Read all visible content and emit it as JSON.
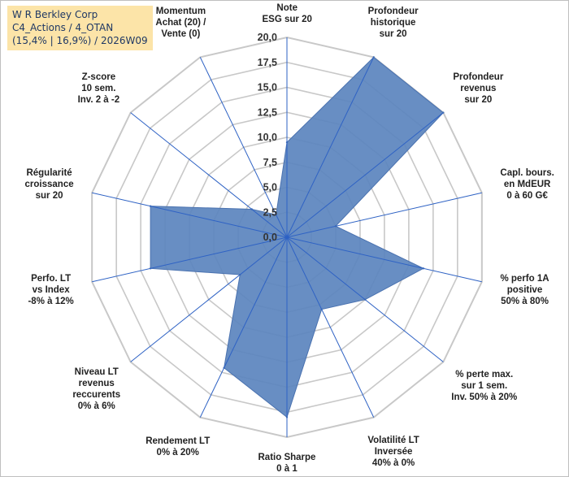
{
  "title_lines": [
    "W R Berkley Corp",
    "C4_Actions / 4_OTAN",
    "(15,4% | 16,9%) / 2026W09"
  ],
  "colors": {
    "fill": "#5b84be",
    "stroke": "#4a72b0",
    "grid": "#c8c8c8",
    "spoke": "#2e62c4",
    "title_bg": "#fce4a8",
    "title_text": "#1f3864"
  },
  "chart_data": {
    "type": "radar",
    "title": "W R Berkley Corp",
    "range": [
      0,
      20
    ],
    "ticks": [
      "0,0",
      "2,5",
      "5,0",
      "7,5",
      "10,0",
      "12,5",
      "15,0",
      "17,5",
      "20,0"
    ],
    "tick_values": [
      0,
      2.5,
      5,
      7.5,
      10,
      12.5,
      15,
      17.5,
      20
    ],
    "axes": [
      "Note\nESG sur 20",
      "Profondeur\nhistorique\nsur 20",
      "Profondeur\nrevenus\nsur 20",
      "Capl. bours.\nen MdEUR\n0 à 60 G€",
      "% perfo 1A\npositive\n50% à 80%",
      "% perte max.\nsur 1 sem.\nInv. 50% à 20%",
      "Volatilité LT\nInversée\n40% à 0%",
      "Ratio Sharpe\n0 à 1",
      "Rendement LT\n0% à 20%",
      "Niveau LT\nrevenus\nreccurents\n0% à 6%",
      "Perfo. LT\nvs Index\n-8% à 12%",
      "Régularité\ncroissance\nsur 20",
      "Z-score\n10 sem.\nInv. 2 à -2",
      "Momentum\nAchat (20) /\nVente (0)"
    ],
    "values": [
      9.5,
      20.0,
      20.0,
      5.0,
      14.0,
      10.0,
      8.0,
      18.0,
      14.5,
      6.0,
      14.0,
      14.0,
      4.5,
      2.5
    ]
  }
}
